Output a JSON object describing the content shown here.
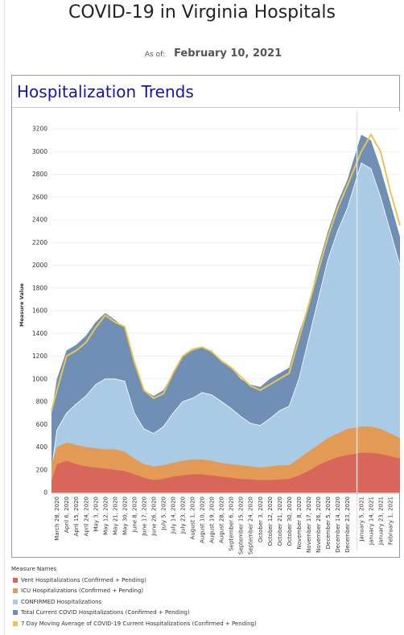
{
  "header": {
    "title": "COVID-19 in Virginia Hospitals",
    "as_of_label": "As of:",
    "as_of_date": "February 10, 2021"
  },
  "panel": {
    "title": "Hospitalization Trends"
  },
  "legend": {
    "title": "Measure Names",
    "items": [
      {
        "label": "Vent Hospitalizations (Confirmed + Pending)",
        "color": "#d9665a"
      },
      {
        "label": "ICU Hospitalizations (Confirmed + Pending)",
        "color": "#e39a55"
      },
      {
        "label": "CONFIRMED Hospitalizations",
        "color": "#a9cbe6"
      },
      {
        "label": "Total Current COVID Hospitalizations (Confirmed + Pending)",
        "color": "#6f8fb5"
      },
      {
        "label": "7 Day Moving Average of COVID-19 Current Hospitalizations (Confirmed + Pending)",
        "color": "#e8c554"
      }
    ]
  },
  "chart_data": {
    "type": "area",
    "ylabel": "Measure Value",
    "ylim": [
      0,
      3300
    ],
    "yticks": [
      0,
      200,
      400,
      600,
      800,
      1000,
      1200,
      1400,
      1600,
      1800,
      2000,
      2200,
      2400,
      2600,
      2800,
      3000,
      3200
    ],
    "xlim": [
      "2020-03-23",
      "2021-02-10"
    ],
    "x_tick_labels": [
      "March 28, 2020",
      "April 6, 2020",
      "April 15, 2020",
      "April 24, 2020",
      "May 3, 2020",
      "May 12, 2020",
      "May 21, 2020",
      "May 30, 2020",
      "June 8, 2020",
      "June 17, 2020",
      "June 26, 2020",
      "July 5, 2020",
      "July 14, 2020",
      "July 23, 2020",
      "August 1, 2020",
      "August 10, 2020",
      "August 19, 2020",
      "August 28, 2020",
      "September 6, 2020",
      "September 15, 2020",
      "September 24, 2020",
      "October 3, 2020",
      "October 12, 2020",
      "October 21, 2020",
      "October 30, 2020",
      "November 8, 2020",
      "November 17, 2020",
      "November 26, 2020",
      "December 5, 2020",
      "December 14, 2020",
      "December 23, 2020",
      "January 5, 2021",
      "January 14, 2021",
      "January 23, 2021",
      "February 1, 2021"
    ],
    "x_tick_dates": [
      "2020-03-28",
      "2020-04-06",
      "2020-04-15",
      "2020-04-24",
      "2020-05-03",
      "2020-05-12",
      "2020-05-21",
      "2020-05-30",
      "2020-06-08",
      "2020-06-17",
      "2020-06-26",
      "2020-07-05",
      "2020-07-14",
      "2020-07-23",
      "2020-08-01",
      "2020-08-10",
      "2020-08-19",
      "2020-08-28",
      "2020-09-06",
      "2020-09-15",
      "2020-09-24",
      "2020-10-03",
      "2020-10-12",
      "2020-10-21",
      "2020-10-30",
      "2020-11-08",
      "2020-11-17",
      "2020-11-26",
      "2020-12-05",
      "2020-12-14",
      "2020-12-23",
      "2021-01-05",
      "2021-01-14",
      "2021-01-23",
      "2021-02-01"
    ],
    "series": [
      {
        "name": "Total Current COVID Hospitalizations (Confirmed + Pending)",
        "x": [
          "2020-03-23",
          "2020-03-28",
          "2020-04-06",
          "2020-04-15",
          "2020-04-24",
          "2020-05-03",
          "2020-05-12",
          "2020-05-21",
          "2020-05-30",
          "2020-06-08",
          "2020-06-17",
          "2020-06-26",
          "2020-07-05",
          "2020-07-14",
          "2020-07-23",
          "2020-08-01",
          "2020-08-10",
          "2020-08-19",
          "2020-08-28",
          "2020-09-06",
          "2020-09-15",
          "2020-09-24",
          "2020-10-03",
          "2020-10-12",
          "2020-10-21",
          "2020-10-30",
          "2020-11-08",
          "2020-11-17",
          "2020-11-26",
          "2020-12-05",
          "2020-12-14",
          "2020-12-23",
          "2021-01-05",
          "2021-01-14",
          "2021-01-23",
          "2021-02-01",
          "2021-02-10"
        ],
        "values": [
          700,
          1000,
          1250,
          1300,
          1380,
          1500,
          1580,
          1520,
          1450,
          1150,
          900,
          850,
          900,
          1050,
          1200,
          1250,
          1280,
          1250,
          1150,
          1100,
          1000,
          950,
          930,
          1000,
          1050,
          1100,
          1400,
          1650,
          2000,
          2300,
          2550,
          2750,
          3150,
          3100,
          2850,
          2550,
          2250
        ]
      },
      {
        "name": "7 Day Moving Average of COVID-19 Current Hospitalizations (Confirmed + Pending)",
        "x": [
          "2020-03-23",
          "2020-03-28",
          "2020-04-06",
          "2020-04-15",
          "2020-04-24",
          "2020-05-03",
          "2020-05-12",
          "2020-05-21",
          "2020-05-30",
          "2020-06-08",
          "2020-06-17",
          "2020-06-26",
          "2020-07-05",
          "2020-07-14",
          "2020-07-23",
          "2020-08-01",
          "2020-08-10",
          "2020-08-19",
          "2020-08-28",
          "2020-09-06",
          "2020-09-15",
          "2020-09-24",
          "2020-10-03",
          "2020-10-12",
          "2020-10-21",
          "2020-10-30",
          "2020-11-08",
          "2020-11-17",
          "2020-11-26",
          "2020-12-05",
          "2020-12-14",
          "2020-12-23",
          "2021-01-05",
          "2021-01-14",
          "2021-01-23",
          "2021-02-01",
          "2021-02-10"
        ],
        "values": [
          720,
          900,
          1200,
          1250,
          1320,
          1450,
          1560,
          1500,
          1460,
          1150,
          900,
          830,
          870,
          1050,
          1200,
          1260,
          1280,
          1240,
          1160,
          1100,
          1020,
          940,
          900,
          950,
          1000,
          1050,
          1350,
          1650,
          1950,
          2250,
          2500,
          2700,
          3000,
          3150,
          3000,
          2650,
          2350
        ]
      },
      {
        "name": "CONFIRMED Hospitalizations",
        "x": [
          "2020-03-23",
          "2020-03-28",
          "2020-04-06",
          "2020-04-15",
          "2020-04-24",
          "2020-05-03",
          "2020-05-12",
          "2020-05-21",
          "2020-05-30",
          "2020-06-08",
          "2020-06-17",
          "2020-06-26",
          "2020-07-05",
          "2020-07-14",
          "2020-07-23",
          "2020-08-01",
          "2020-08-10",
          "2020-08-19",
          "2020-08-28",
          "2020-09-06",
          "2020-09-15",
          "2020-09-24",
          "2020-10-03",
          "2020-10-12",
          "2020-10-21",
          "2020-10-30",
          "2020-11-08",
          "2020-11-17",
          "2020-11-26",
          "2020-12-05",
          "2020-12-14",
          "2020-12-23",
          "2021-01-05",
          "2021-01-14",
          "2021-01-23",
          "2021-02-01",
          "2021-02-10"
        ],
        "values": [
          200,
          550,
          700,
          780,
          850,
          950,
          1000,
          1000,
          980,
          700,
          560,
          520,
          580,
          700,
          800,
          830,
          880,
          860,
          800,
          740,
          670,
          610,
          590,
          650,
          720,
          760,
          1000,
          1350,
          1700,
          2050,
          2300,
          2500,
          2900,
          2850,
          2600,
          2300,
          2000
        ]
      },
      {
        "name": "ICU Hospitalizations (Confirmed + Pending)",
        "x": [
          "2020-03-23",
          "2020-03-28",
          "2020-04-06",
          "2020-04-15",
          "2020-04-24",
          "2020-05-03",
          "2020-05-12",
          "2020-05-21",
          "2020-05-30",
          "2020-06-08",
          "2020-06-17",
          "2020-06-26",
          "2020-07-05",
          "2020-07-14",
          "2020-07-23",
          "2020-08-01",
          "2020-08-10",
          "2020-08-19",
          "2020-08-28",
          "2020-09-06",
          "2020-09-15",
          "2020-09-24",
          "2020-10-03",
          "2020-10-12",
          "2020-10-21",
          "2020-10-30",
          "2020-11-08",
          "2020-11-17",
          "2020-11-26",
          "2020-12-05",
          "2020-12-14",
          "2020-12-23",
          "2021-01-05",
          "2021-01-14",
          "2021-01-23",
          "2021-02-01",
          "2021-02-10"
        ],
        "values": [
          250,
          400,
          440,
          420,
          400,
          390,
          380,
          380,
          360,
          300,
          250,
          230,
          240,
          260,
          280,
          290,
          290,
          280,
          260,
          250,
          240,
          230,
          220,
          230,
          240,
          240,
          300,
          360,
          420,
          480,
          520,
          560,
          580,
          580,
          560,
          520,
          480
        ]
      },
      {
        "name": "Vent Hospitalizations (Confirmed + Pending)",
        "x": [
          "2020-03-23",
          "2020-03-28",
          "2020-04-06",
          "2020-04-15",
          "2020-04-24",
          "2020-05-03",
          "2020-05-12",
          "2020-05-21",
          "2020-05-30",
          "2020-06-08",
          "2020-06-17",
          "2020-06-26",
          "2020-07-05",
          "2020-07-14",
          "2020-07-23",
          "2020-08-01",
          "2020-08-10",
          "2020-08-19",
          "2020-08-28",
          "2020-09-06",
          "2020-09-15",
          "2020-09-24",
          "2020-10-03",
          "2020-10-12",
          "2020-10-21",
          "2020-10-30",
          "2020-11-08",
          "2020-11-17",
          "2020-11-26",
          "2020-12-05",
          "2020-12-14",
          "2020-12-23",
          "2021-01-05",
          "2021-01-14",
          "2021-01-23",
          "2021-02-01",
          "2021-02-10"
        ],
        "values": [
          100,
          250,
          280,
          250,
          230,
          220,
          210,
          200,
          190,
          160,
          130,
          110,
          120,
          140,
          150,
          160,
          160,
          150,
          140,
          130,
          120,
          115,
          110,
          110,
          115,
          120,
          150,
          190,
          240,
          280,
          310,
          330,
          350,
          350,
          340,
          320,
          300
        ]
      }
    ]
  }
}
